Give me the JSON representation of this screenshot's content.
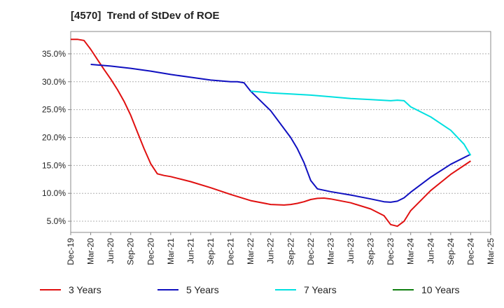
{
  "chart_data": {
    "type": "line",
    "title": "[4570]  Trend of StDev of ROE",
    "xlabel": "",
    "ylabel": "",
    "x_ticks": [
      "Dec-19",
      "Mar-20",
      "Jun-20",
      "Sep-20",
      "Dec-20",
      "Mar-21",
      "Jun-21",
      "Sep-21",
      "Dec-21",
      "Mar-22",
      "Jun-22",
      "Sep-22",
      "Dec-22",
      "Mar-23",
      "Jun-23",
      "Sep-23",
      "Dec-23",
      "Mar-24",
      "Jun-24",
      "Sep-24",
      "Dec-24",
      "Mar-25"
    ],
    "y_ticks": [
      "5.0%",
      "10.0%",
      "15.0%",
      "20.0%",
      "25.0%",
      "30.0%",
      "35.0%"
    ],
    "y_tick_values": [
      5,
      10,
      15,
      20,
      25,
      30,
      35
    ],
    "ylim": [
      3,
      39
    ],
    "grid": "horizontal dashed",
    "legend_position": "bottom",
    "series": [
      {
        "name": "3 Years",
        "color": "#e01010",
        "points": [
          [
            "Dec-19",
            37.6
          ],
          [
            "Jan-20",
            37.6
          ],
          [
            "Feb-20",
            37.4
          ],
          [
            "Mar-20",
            35.8
          ],
          [
            "Apr-20",
            34.0
          ],
          [
            "May-20",
            32.2
          ],
          [
            "Jun-20",
            30.5
          ],
          [
            "Jul-20",
            28.6
          ],
          [
            "Aug-20",
            26.5
          ],
          [
            "Sep-20",
            24.0
          ],
          [
            "Oct-20",
            21.0
          ],
          [
            "Nov-20",
            18.0
          ],
          [
            "Dec-20",
            15.3
          ],
          [
            "Jan-21",
            13.5
          ],
          [
            "Feb-21",
            13.2
          ],
          [
            "Mar-21",
            13.0
          ],
          [
            "Jun-21",
            12.1
          ],
          [
            "Sep-21",
            11.0
          ],
          [
            "Dec-21",
            9.8
          ],
          [
            "Mar-22",
            8.7
          ],
          [
            "Jun-22",
            8.0
          ],
          [
            "Aug-22",
            7.9
          ],
          [
            "Sep-22",
            8.0
          ],
          [
            "Oct-22",
            8.2
          ],
          [
            "Nov-22",
            8.5
          ],
          [
            "Dec-22",
            8.9
          ],
          [
            "Jan-23",
            9.1
          ],
          [
            "Feb-23",
            9.15
          ],
          [
            "Mar-23",
            9.0
          ],
          [
            "Jun-23",
            8.3
          ],
          [
            "Sep-23",
            7.2
          ],
          [
            "Nov-23",
            6.0
          ],
          [
            "Dec-23",
            4.4
          ],
          [
            "Jan-24",
            4.1
          ],
          [
            "Feb-24",
            5.0
          ],
          [
            "Mar-24",
            6.9
          ],
          [
            "Jun-24",
            10.5
          ],
          [
            "Sep-24",
            13.4
          ],
          [
            "Dec-24",
            15.8
          ]
        ]
      },
      {
        "name": "5 Years",
        "color": "#1010c0",
        "points": [
          [
            "Mar-20",
            33.1
          ],
          [
            "Jun-20",
            32.8
          ],
          [
            "Sep-20",
            32.4
          ],
          [
            "Dec-20",
            31.9
          ],
          [
            "Mar-21",
            31.3
          ],
          [
            "Jun-21",
            30.8
          ],
          [
            "Sep-21",
            30.3
          ],
          [
            "Dec-21",
            30.0
          ],
          [
            "Jan-22",
            30.0
          ],
          [
            "Feb-22",
            29.8
          ],
          [
            "Mar-22",
            28.3
          ],
          [
            "Jun-22",
            24.8
          ],
          [
            "Sep-22",
            20.0
          ],
          [
            "Oct-22",
            18.0
          ],
          [
            "Nov-22",
            15.5
          ],
          [
            "Dec-22",
            12.3
          ],
          [
            "Jan-23",
            10.8
          ],
          [
            "Mar-23",
            10.3
          ],
          [
            "Jun-23",
            9.7
          ],
          [
            "Sep-23",
            9.0
          ],
          [
            "Nov-23",
            8.5
          ],
          [
            "Dec-23",
            8.4
          ],
          [
            "Jan-24",
            8.6
          ],
          [
            "Feb-24",
            9.2
          ],
          [
            "Mar-24",
            10.2
          ],
          [
            "Jun-24",
            12.9
          ],
          [
            "Sep-24",
            15.2
          ],
          [
            "Dec-24",
            17.0
          ]
        ]
      },
      {
        "name": "7 Years",
        "color": "#00e0e0",
        "points": [
          [
            "Mar-22",
            28.3
          ],
          [
            "Jun-22",
            28.0
          ],
          [
            "Sep-22",
            27.8
          ],
          [
            "Dec-22",
            27.6
          ],
          [
            "Mar-23",
            27.3
          ],
          [
            "Jun-23",
            27.0
          ],
          [
            "Sep-23",
            26.8
          ],
          [
            "Dec-23",
            26.6
          ],
          [
            "Jan-24",
            26.7
          ],
          [
            "Feb-24",
            26.6
          ],
          [
            "Mar-24",
            25.5
          ],
          [
            "Jun-24",
            23.7
          ],
          [
            "Sep-24",
            21.3
          ],
          [
            "Nov-24",
            18.8
          ],
          [
            "Dec-24",
            16.8
          ]
        ]
      },
      {
        "name": "10 Years",
        "color": "#108010",
        "points": []
      }
    ]
  }
}
